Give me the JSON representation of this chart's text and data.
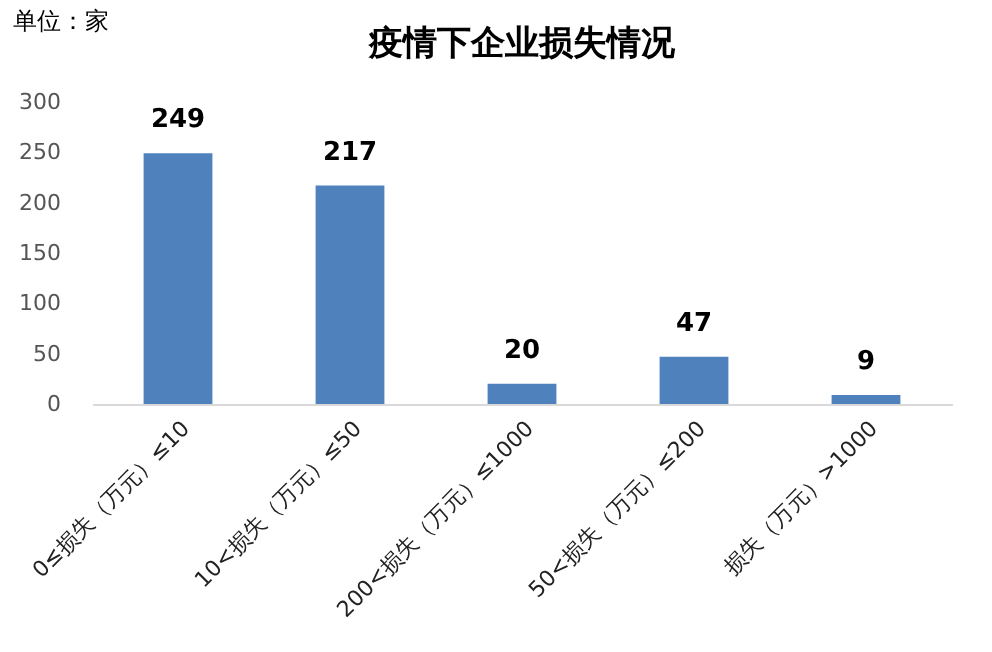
{
  "chart_data": {
    "type": "bar",
    "title": "疫情下企业损失情况",
    "ylabel": "单位：家",
    "categories": [
      "0≤损失（万元）≤10",
      "10<损失（万元）≤50",
      "200<损失（万元）≤1000",
      "50<损失（万元）≤200",
      "损失（万元）>1000"
    ],
    "values": [
      249,
      217,
      20,
      47,
      9
    ],
    "color": "#4f81bd",
    "data_labels": true,
    "grid": false,
    "ylim": [
      0,
      300
    ],
    "yticks": [
      0,
      50,
      100,
      150,
      200,
      250,
      300
    ]
  }
}
